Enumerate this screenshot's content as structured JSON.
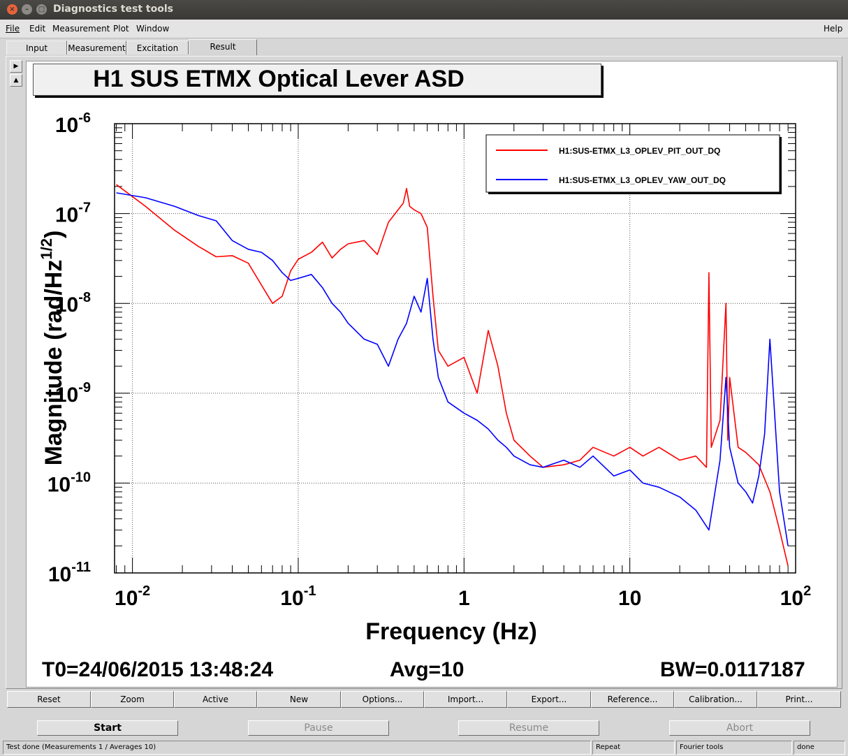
{
  "window": {
    "title": "Diagnostics test tools"
  },
  "menubar": {
    "items": [
      "File",
      "Edit",
      "Measurement",
      "Plot",
      "Window"
    ],
    "help": "Help"
  },
  "tabs": [
    {
      "label": "Input",
      "active": false
    },
    {
      "label": "Measurement",
      "active": false
    },
    {
      "label": "Excitation",
      "active": false
    },
    {
      "label": "Result",
      "active": true
    }
  ],
  "plot": {
    "title": "H1 SUS ETMX Optical Lever ASD",
    "stats": {
      "t0": "T0=24/06/2015 13:48:24",
      "avg": "Avg=10",
      "bw": "BW=0.0117187"
    }
  },
  "chart_data": {
    "type": "line",
    "title": "H1 SUS ETMX Optical Lever ASD",
    "xlabel": "Frequency (Hz)",
    "ylabel": "Magnitude (rad/Hz^1/2)",
    "xscale": "log",
    "yscale": "log",
    "xlim": [
      0.0078,
      100
    ],
    "ylim": [
      1e-11,
      1e-06
    ],
    "x_ticks": [
      "10^-2",
      "10^-1",
      "1",
      "10",
      "10^2"
    ],
    "y_ticks": [
      "10^-6",
      "10^-7",
      "10^-8",
      "10^-9",
      "10^-10",
      "10^-11"
    ],
    "grid": true,
    "legend_position": "top-right",
    "series": [
      {
        "name": "H1:SUS-ETMX_L3_OPLEV_PIT_OUT_DQ",
        "color": "#ff0000",
        "x": [
          0.008,
          0.012,
          0.018,
          0.025,
          0.032,
          0.04,
          0.05,
          0.06,
          0.07,
          0.08,
          0.09,
          0.1,
          0.12,
          0.14,
          0.16,
          0.18,
          0.2,
          0.25,
          0.3,
          0.35,
          0.4,
          0.43,
          0.45,
          0.47,
          0.5,
          0.55,
          0.6,
          0.65,
          0.7,
          0.8,
          1.0,
          1.2,
          1.4,
          1.6,
          1.8,
          2.0,
          2.5,
          3.0,
          4.0,
          5.0,
          6.0,
          8.0,
          10.0,
          12.0,
          15.0,
          20.0,
          25.0,
          29.0,
          30.0,
          31.0,
          35.0,
          38.0,
          39.0,
          40.0,
          45.0,
          50.0,
          60.0,
          70.0,
          80.0,
          90.0
        ],
        "y": [
          2.1e-07,
          1.2e-07,
          6.5e-08,
          4.3e-08,
          3.3e-08,
          3.4e-08,
          2.8e-08,
          1.6e-08,
          1e-08,
          1.2e-08,
          2.3e-08,
          3.1e-08,
          3.7e-08,
          4.8e-08,
          3.2e-08,
          4e-08,
          4.6e-08,
          5e-08,
          3.5e-08,
          8e-08,
          1.1e-07,
          1.3e-07,
          1.9e-07,
          1.2e-07,
          1.1e-07,
          1e-07,
          7e-08,
          1.2e-08,
          3e-09,
          2e-09,
          2.5e-09,
          1e-09,
          5e-09,
          2e-09,
          6e-10,
          3e-10,
          2e-10,
          1.5e-10,
          1.6e-10,
          1.8e-10,
          2.5e-10,
          2e-10,
          2.5e-10,
          2e-10,
          2.5e-10,
          1.8e-10,
          2e-10,
          1.5e-10,
          2.2e-08,
          2.5e-10,
          5e-10,
          1e-08,
          3e-10,
          1.5e-09,
          2.5e-10,
          2.2e-10,
          1.6e-10,
          8e-11,
          3e-11,
          1.2e-11
        ]
      },
      {
        "name": "H1:SUS-ETMX_L3_OPLEV_YAW_OUT_DQ",
        "color": "#0000ff",
        "x": [
          0.008,
          0.012,
          0.018,
          0.025,
          0.032,
          0.04,
          0.05,
          0.06,
          0.07,
          0.08,
          0.09,
          0.1,
          0.12,
          0.14,
          0.16,
          0.18,
          0.2,
          0.25,
          0.3,
          0.35,
          0.4,
          0.45,
          0.5,
          0.55,
          0.6,
          0.65,
          0.7,
          0.8,
          1.0,
          1.2,
          1.4,
          1.6,
          1.8,
          2.0,
          2.5,
          3.0,
          4.0,
          5.0,
          6.0,
          8.0,
          10.0,
          12.0,
          15.0,
          20.0,
          25.0,
          30.0,
          35.0,
          38.0,
          40.0,
          45.0,
          50.0,
          55.0,
          60.0,
          65.0,
          70.0,
          80.0,
          90.0
        ],
        "y": [
          1.7e-07,
          1.5e-07,
          1.2e-07,
          9.5e-08,
          8.3e-08,
          5e-08,
          4e-08,
          3.7e-08,
          3e-08,
          2.2e-08,
          1.8e-08,
          1.9e-08,
          2.1e-08,
          1.5e-08,
          1e-08,
          8e-09,
          6e-09,
          4e-09,
          3.5e-09,
          2e-09,
          4e-09,
          6e-09,
          1.2e-08,
          8e-09,
          1.9e-08,
          4e-09,
          1.5e-09,
          8e-10,
          6e-10,
          5e-10,
          4e-10,
          3e-10,
          2.5e-10,
          2e-10,
          1.6e-10,
          1.5e-10,
          1.8e-10,
          1.5e-10,
          2e-10,
          1.2e-10,
          1.4e-10,
          1e-10,
          9e-11,
          7e-11,
          5e-11,
          3e-11,
          1.8e-10,
          1.5e-09,
          2.5e-10,
          1e-10,
          8e-11,
          6e-11,
          1.2e-10,
          3.5e-10,
          4e-09,
          8e-11,
          2e-11
        ]
      }
    ]
  },
  "plot_buttons": [
    "Reset",
    "Zoom",
    "Active",
    "New",
    "Options...",
    "Import...",
    "Export...",
    "Reference...",
    "Calibration...",
    "Print..."
  ],
  "controls": [
    {
      "label": "Start",
      "enabled": true
    },
    {
      "label": "Pause",
      "enabled": false
    },
    {
      "label": "Resume",
      "enabled": false
    },
    {
      "label": "Abort",
      "enabled": false
    }
  ],
  "statusbar": {
    "message": "Test done (Measurements 1 / Averages 10)",
    "repeat": "Repeat",
    "tool": "Fourier tools",
    "state": "done"
  }
}
